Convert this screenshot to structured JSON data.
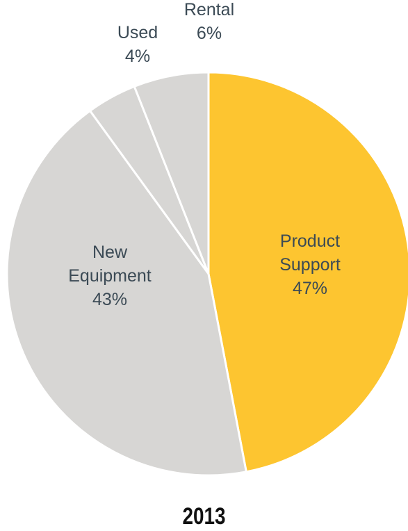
{
  "chart_data": {
    "type": "pie",
    "title": "2013",
    "slices": [
      {
        "label_lines": [
          "Product",
          "Support"
        ],
        "value": 47,
        "value_label": "47%",
        "color": "#fdc530"
      },
      {
        "label_lines": [
          "New",
          "Equipment"
        ],
        "value": 43,
        "value_label": "43%",
        "color": "#d7d6d4"
      },
      {
        "label_lines": [
          "Used"
        ],
        "value": 4,
        "value_label": "4%",
        "color": "#d7d6d4"
      },
      {
        "label_lines": [
          "Rental"
        ],
        "value": 6,
        "value_label": "6%",
        "color": "#d7d6d4"
      }
    ],
    "legend": "none",
    "start": "12 o'clock, clockwise",
    "separator_color": "#ffffff",
    "label_color": "#3b4a55"
  }
}
